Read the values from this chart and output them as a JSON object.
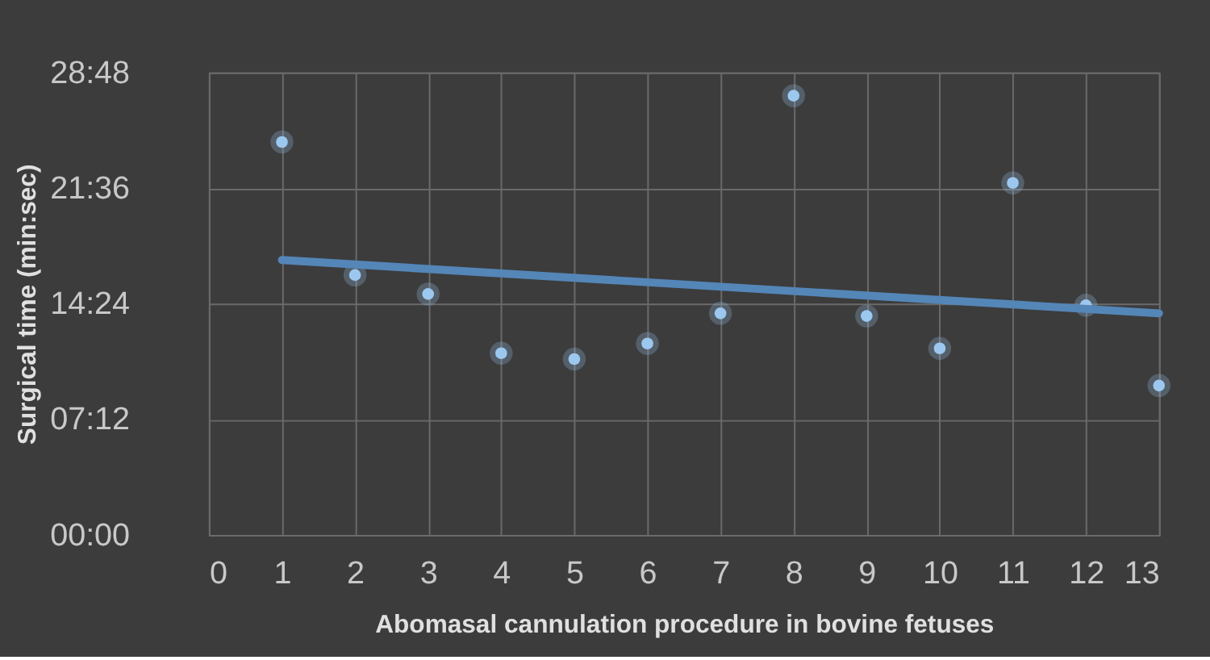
{
  "chart_data": {
    "type": "scatter",
    "xlabel": "Abomasal cannulation procedure in bovine fetuses",
    "ylabel": "Surgical time (min:sec)",
    "x": [
      1,
      2,
      3,
      4,
      5,
      6,
      7,
      8,
      9,
      10,
      11,
      12,
      13
    ],
    "series": [
      {
        "color": "#9cc8f0",
        "values": [
          1468,
          971,
          900,
          679,
          657,
          715,
          828,
          1641,
          818,
          697,
          1315,
          858,
          558
        ]
      },
      {
        "type": "line",
        "marker": "none",
        "color": "#5486b8",
        "x": [
          1,
          13
        ],
        "values": [
          1027,
          828
        ]
      }
    ],
    "xlim": [
      0,
      13
    ],
    "xticks": [
      0,
      1,
      2,
      3,
      4,
      5,
      6,
      7,
      8,
      9,
      10,
      11,
      12,
      13
    ],
    "ylim": [
      0,
      1728
    ],
    "yticks": [
      {
        "value": 0,
        "label": "00:00"
      },
      {
        "value": 432,
        "label": "07:12"
      },
      {
        "value": 864,
        "label": "14:24"
      },
      {
        "value": 1296,
        "label": "21:36"
      },
      {
        "value": 1728,
        "label": "28:48"
      }
    ],
    "grid": true,
    "marker": "circle",
    "line_style": "solid"
  }
}
